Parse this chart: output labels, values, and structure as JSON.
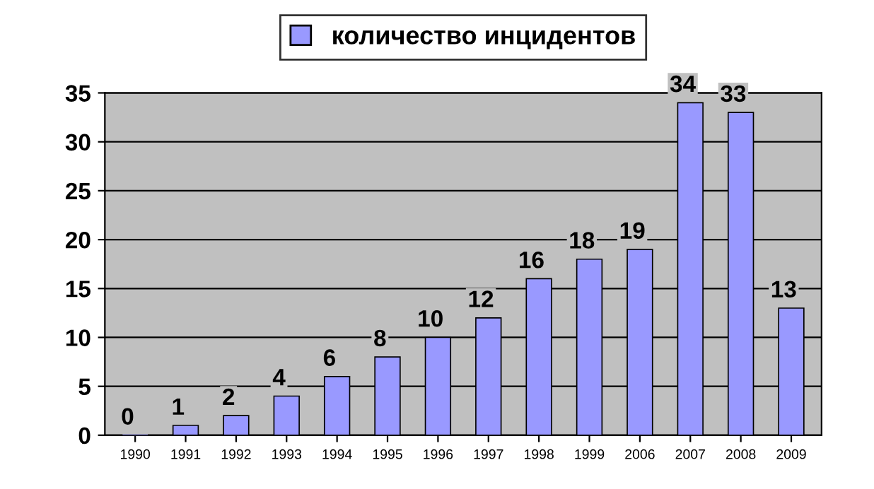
{
  "chart_data": {
    "type": "bar",
    "categories": [
      "1990",
      "1991",
      "1992",
      "1993",
      "1994",
      "1995",
      "1996",
      "1997",
      "1998",
      "1999",
      "2006",
      "2007",
      "2008",
      "2009"
    ],
    "series": [
      {
        "name": "количество инцидентов",
        "color": "#9999ff",
        "values": [
          0,
          1,
          2,
          4,
          6,
          8,
          10,
          12,
          16,
          18,
          19,
          34,
          33,
          13
        ]
      }
    ],
    "ylim": [
      0,
      35
    ],
    "yticks": [
      0,
      5,
      10,
      15,
      20,
      25,
      30,
      35
    ],
    "grid": "y",
    "legend": "top",
    "data_labels": true
  }
}
